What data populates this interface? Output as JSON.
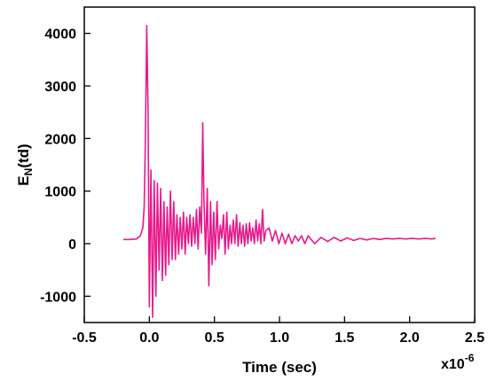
{
  "chart_data": {
    "type": "line",
    "title": "",
    "xlabel": "Time (sec)",
    "ylabel_main": "E",
    "ylabel_sub": "N",
    "ylabel_suffix": "(td)",
    "x_multiplier_base": "x10",
    "x_multiplier_exp": "-6",
    "xlim": [
      -0.5,
      2.5
    ],
    "ylim": [
      -1500,
      4500
    ],
    "xticks": [
      -0.5,
      0.0,
      0.5,
      1.0,
      1.5,
      2.0,
      2.5
    ],
    "xtick_labels": [
      "-0.5",
      "0.0",
      "0.5",
      "1.0",
      "1.5",
      "2.0",
      "2.5"
    ],
    "yticks": [
      -1000,
      0,
      1000,
      2000,
      3000,
      4000
    ],
    "ytick_labels": [
      "-1000",
      "0",
      "1000",
      "2000",
      "3000",
      "4000"
    ],
    "grid": false,
    "line_color": "#e8198b",
    "series": [
      {
        "x": [
          -0.2,
          -0.15,
          -0.1,
          -0.07,
          -0.05,
          -0.04,
          -0.03,
          -0.02,
          -0.01,
          0.0,
          0.012,
          0.025,
          0.037,
          0.05,
          0.062,
          0.075,
          0.087,
          0.1,
          0.112,
          0.125,
          0.137,
          0.15,
          0.162,
          0.175,
          0.187,
          0.2,
          0.212,
          0.225,
          0.237,
          0.25,
          0.262,
          0.275,
          0.287,
          0.3,
          0.312,
          0.325,
          0.337,
          0.35,
          0.362,
          0.375,
          0.387,
          0.4,
          0.41,
          0.42,
          0.432,
          0.445,
          0.457,
          0.47,
          0.482,
          0.495,
          0.507,
          0.52,
          0.532,
          0.545,
          0.557,
          0.57,
          0.582,
          0.595,
          0.607,
          0.62,
          0.632,
          0.645,
          0.657,
          0.67,
          0.682,
          0.695,
          0.707,
          0.72,
          0.732,
          0.745,
          0.757,
          0.77,
          0.782,
          0.795,
          0.807,
          0.82,
          0.832,
          0.845,
          0.857,
          0.87,
          0.882,
          0.895,
          0.92,
          0.945,
          0.97,
          0.995,
          1.02,
          1.045,
          1.07,
          1.095,
          1.12,
          1.145,
          1.17,
          1.195,
          1.22,
          1.27,
          1.32,
          1.37,
          1.42,
          1.47,
          1.52,
          1.57,
          1.62,
          1.67,
          1.72,
          1.77,
          1.82,
          1.87,
          1.92,
          1.97,
          2.02,
          2.07,
          2.12,
          2.17,
          2.2
        ],
        "y": [
          80,
          80,
          90,
          150,
          300,
          700,
          2000,
          4150,
          2500,
          -1200,
          1400,
          -1400,
          1200,
          -1000,
          1150,
          -500,
          1050,
          -700,
          800,
          -600,
          700,
          -400,
          1000,
          -300,
          800,
          -300,
          550,
          -200,
          500,
          -100,
          600,
          -200,
          500,
          0,
          550,
          -50,
          500,
          0,
          650,
          -100,
          700,
          200,
          2300,
          800,
          -200,
          1050,
          -800,
          800,
          -400,
          600,
          -300,
          800,
          -100,
          350,
          100,
          550,
          -200,
          600,
          -100,
          350,
          0,
          450,
          0,
          550,
          -50,
          400,
          0,
          350,
          -50,
          380,
          0,
          400,
          50,
          300,
          0,
          450,
          50,
          380,
          0,
          650,
          50,
          250,
          300,
          50,
          250,
          0,
          200,
          0,
          180,
          0,
          150,
          50,
          150,
          0,
          150,
          0,
          120,
          40,
          120,
          50,
          110,
          60,
          100,
          70,
          100,
          80,
          100,
          90,
          100,
          90,
          100,
          90,
          100,
          90,
          100
        ]
      }
    ]
  }
}
